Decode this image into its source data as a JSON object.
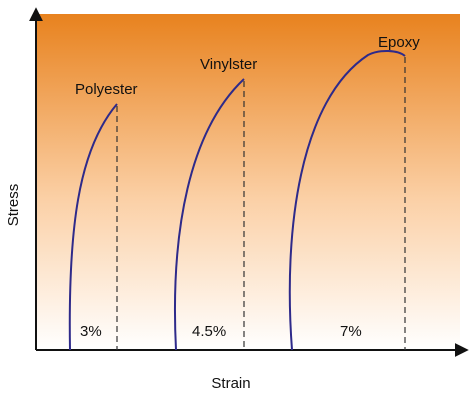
{
  "chart_data": {
    "type": "line",
    "xlabel": "Strain",
    "ylabel": "Stress",
    "series": [
      {
        "name": "Polyester",
        "failure_strain_label": "3%"
      },
      {
        "name": "Vinylster",
        "failure_strain_label": "4.5%"
      },
      {
        "name": "Epoxy",
        "failure_strain_label": "7%"
      }
    ],
    "background_gradient": [
      "#e8821e",
      "#ffffff"
    ],
    "curve_color": "#2e2a8a",
    "axis_color": "#111111"
  }
}
